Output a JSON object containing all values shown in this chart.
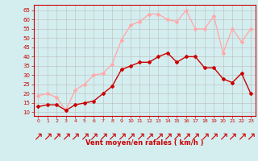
{
  "x": [
    0,
    1,
    2,
    3,
    4,
    5,
    6,
    7,
    8,
    9,
    10,
    11,
    12,
    13,
    14,
    15,
    16,
    17,
    18,
    19,
    20,
    21,
    22,
    23
  ],
  "vent_moyen": [
    13,
    14,
    14,
    11,
    14,
    15,
    16,
    20,
    24,
    33,
    35,
    37,
    37,
    40,
    42,
    37,
    40,
    40,
    34,
    34,
    28,
    26,
    31,
    20
  ],
  "rafales": [
    19,
    20,
    18,
    11,
    22,
    25,
    30,
    31,
    36,
    49,
    57,
    59,
    63,
    63,
    60,
    59,
    65,
    55,
    55,
    62,
    42,
    55,
    48,
    55
  ],
  "moyen_color": "#cc0000",
  "rafales_color": "#ffaaaa",
  "background_color": "#d4eef0",
  "grid_color": "#bbbbbb",
  "xlabel": "Vent moyen/en rafales ( km/h )",
  "ylabel_ticks": [
    10,
    15,
    20,
    25,
    30,
    35,
    40,
    45,
    50,
    55,
    60,
    65
  ],
  "ylim": [
    8,
    68
  ],
  "xlim": [
    -0.5,
    23.5
  ],
  "marker": "D",
  "marker_size": 2,
  "line_width": 1.0
}
